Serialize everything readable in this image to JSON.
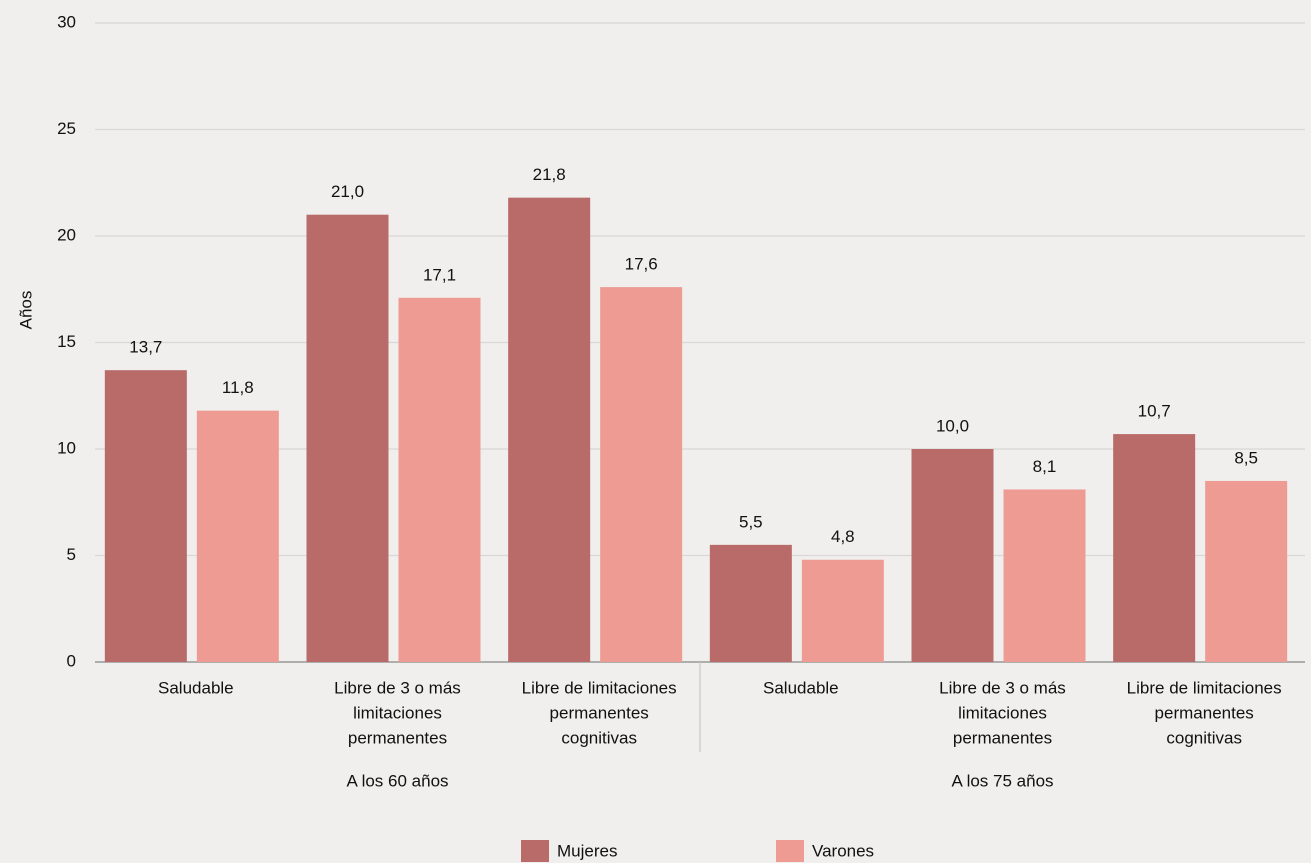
{
  "chart_data": {
    "type": "bar",
    "y_label": "Años",
    "categories": [
      [
        "Saludable"
      ],
      [
        "Libre de 3 o más",
        "limitaciones",
        "permanentes"
      ],
      [
        "Libre de limitaciones",
        "permanentes",
        "cognitivas"
      ],
      [
        "Saludable"
      ],
      [
        "Libre de 3 o más",
        "limitaciones",
        "permanentes"
      ],
      [
        "Libre de limitaciones",
        "permanentes",
        "cognitivas"
      ]
    ],
    "groups": [
      "A los 60 años",
      "A los 75 años"
    ],
    "series": [
      {
        "name": "Mujeres",
        "color": "#b86b69",
        "values": [
          13.7,
          21.0,
          21.8,
          5.5,
          10.0,
          10.7
        ],
        "value_labels": [
          "13,7",
          "21,0",
          "21,8",
          "5,5",
          "10,0",
          "10,7"
        ]
      },
      {
        "name": "Varones",
        "color": "#ee9b93",
        "values": [
          11.8,
          17.1,
          17.6,
          4.8,
          8.1,
          8.5
        ],
        "value_labels": [
          "11,8",
          "17,1",
          "17,6",
          "4,8",
          "8,1",
          "8,5"
        ]
      }
    ],
    "ylim": [
      0,
      30
    ],
    "yticks": [
      0,
      5,
      10,
      15,
      20,
      25,
      30
    ],
    "grid": true
  }
}
